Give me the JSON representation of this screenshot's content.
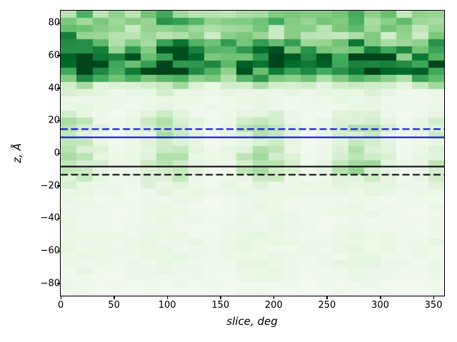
{
  "figure": {
    "background": "#ffffff"
  },
  "chart_data": {
    "type": "heatmap",
    "title": "",
    "xlabel": "slice, deg",
    "ylabel": "z, Å",
    "xlim": [
      0,
      360
    ],
    "ylim": [
      -87.5,
      87.5
    ],
    "x_tick_values": [
      0,
      50,
      100,
      150,
      200,
      250,
      300,
      350
    ],
    "x_tick_labels": [
      "0",
      "50",
      "100",
      "150",
      "200",
      "250",
      "300",
      "350"
    ],
    "y_tick_values": [
      80,
      60,
      40,
      20,
      0,
      -20,
      -40,
      -60,
      -80
    ],
    "y_tick_labels": [
      "80",
      "60",
      "40",
      "20",
      "0",
      "−20",
      "−40",
      "−60",
      "−80"
    ],
    "grid": {
      "cols": 24,
      "rows": 40,
      "deg_per_col": 15,
      "angstrom_per_row": 4.375,
      "gridlines": false
    },
    "row_profile": [
      0.44,
      0.5,
      0.38,
      0.34,
      0.56,
      0.65,
      0.78,
      0.87,
      0.74,
      0.52,
      0.24,
      0.11,
      0.07,
      0.07,
      0.1,
      0.15,
      0.18,
      0.15,
      0.13,
      0.15,
      0.17,
      0.19,
      0.18,
      0.13,
      0.1,
      0.08,
      0.06,
      0.06,
      0.06,
      0.06,
      0.06,
      0.07,
      0.08,
      0.07,
      0.07,
      0.08,
      0.07,
      0.06,
      0.05,
      0.04
    ],
    "col_modulation": {
      "period_deg": 90,
      "phase_deg": 10,
      "row_amps": [
        0.12,
        0.12,
        0.12,
        0.12,
        0.12,
        0.12,
        0.12,
        0.12,
        0.12,
        0.12,
        0.35,
        0.35,
        0.35,
        0.35,
        0.7,
        0.7,
        0.7,
        0.7,
        0.7,
        0.7,
        0.7,
        0.7,
        0.7,
        0.7,
        0.35,
        0.35,
        0.35,
        0.35,
        0.35,
        0.35,
        0.25,
        0.25,
        0.25,
        0.25,
        0.25,
        0.25,
        0.25,
        0.25,
        0.25,
        0.25
      ]
    },
    "noise": {
      "base": 0.6,
      "spread": 0.8,
      "seed_a": 127.1,
      "seed_b": 311.7,
      "seed_c": 43758.5453
    },
    "anomalies": [
      {
        "row": 3,
        "col": 0,
        "value": 0.8
      },
      {
        "row": 4,
        "col": 0,
        "value": 0.75
      }
    ],
    "colormap": {
      "name": "Greens",
      "stops": [
        "#f7fcf5",
        "#e5f5e0",
        "#c7e9c0",
        "#a1d99b",
        "#74c476",
        "#41ab5d",
        "#238b45",
        "#006d2c",
        "#00441b"
      ]
    },
    "hlines": [
      {
        "name": "upper-dashed-line",
        "z": 15,
        "color": "#0000ff",
        "style": "dashed",
        "lw": 2
      },
      {
        "name": "upper-solid-line",
        "z": 10,
        "color": "#0000ff",
        "style": "solid",
        "lw": 2
      },
      {
        "name": "lower-solid-line",
        "z": -8,
        "color": "#000000",
        "style": "solid",
        "lw": 2
      },
      {
        "name": "lower-dashed-line",
        "z": -13,
        "color": "#000000",
        "style": "dashed",
        "lw": 2
      }
    ],
    "legend": null
  }
}
